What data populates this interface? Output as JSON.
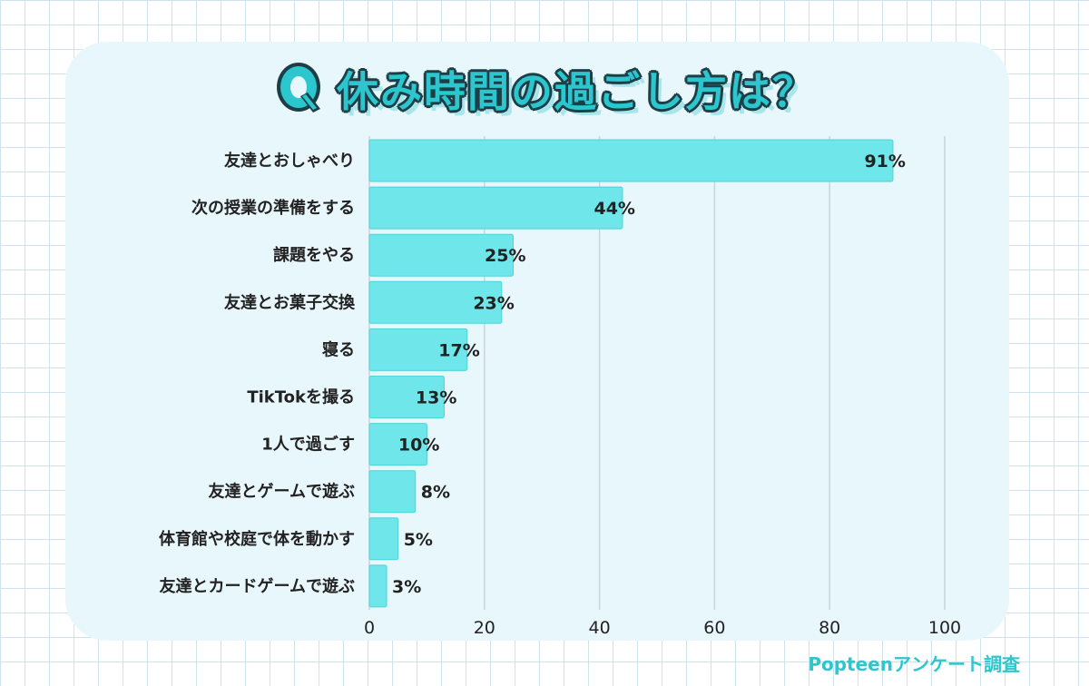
{
  "title": "休み時間の過ごし方は？",
  "title_badge": "Q",
  "source": "Popteenアンケート調査",
  "colors": {
    "bar": "#6ee6ea",
    "bar_edge": "#4dd3d9",
    "accent": "#2cc6cf",
    "outline": "#1d3e46",
    "card": "#e8f7fc",
    "grid": "#c8d4dc"
  },
  "chart_data": {
    "type": "bar",
    "orientation": "horizontal",
    "categories": [
      "友達とおしゃべり",
      "次の授業の準備をする",
      "課題をやる",
      "友達とお菓子交換",
      "寝る",
      "TikTokを撮る",
      "1人で過ごす",
      "友達とゲームで遊ぶ",
      "体育館や校庭で体を動かす",
      "友達とカードゲームで遊ぶ"
    ],
    "values": [
      91,
      44,
      25,
      23,
      17,
      13,
      10,
      8,
      5,
      3
    ],
    "value_labels": [
      "91%",
      "44%",
      "25%",
      "23%",
      "17%",
      "13%",
      "10%",
      "8%",
      "5%",
      "3%"
    ],
    "xlim": [
      0,
      100
    ],
    "xticks": [
      "0",
      "20",
      "40",
      "60",
      "80",
      "100"
    ],
    "grid": true
  }
}
